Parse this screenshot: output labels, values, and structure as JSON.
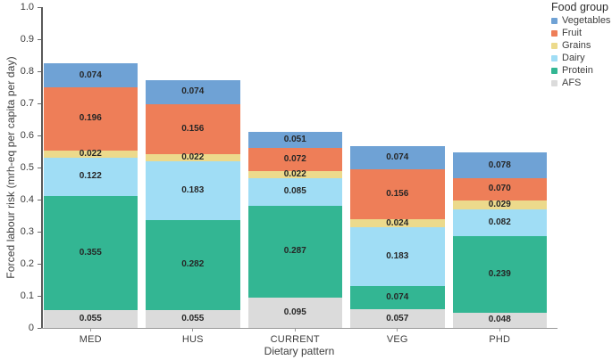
{
  "chart_data": {
    "type": "bar",
    "subtype": "stacked-vertical",
    "title": "",
    "xlabel": "Dietary pattern",
    "ylabel": "Forced labour risk (mrh-eq per capita per day)",
    "ylim": [
      0,
      1.0
    ],
    "ytick_step": 0.1,
    "ytick_labels": [
      "0",
      "0.1",
      "0.2",
      "0.3",
      "0.4",
      "0.5",
      "0.6",
      "0.7",
      "0.8",
      "0.9",
      "1.0"
    ],
    "grid": false,
    "legend_position": "top-right-outside",
    "legend_title": "Food group",
    "categories": [
      "MED",
      "HUS",
      "CURRENT",
      "VEG",
      "PHD"
    ],
    "stack_order_note": "series listed top-of-stack first; AFS is at the bottom of each bar",
    "value_label_decimals": 3,
    "series": [
      {
        "name": "Vegetables",
        "color": "#6FA2D5",
        "values": [
          0.074,
          0.074,
          0.051,
          0.074,
          0.078
        ]
      },
      {
        "name": "Fruit",
        "color": "#EE7E58",
        "values": [
          0.196,
          0.156,
          0.072,
          0.156,
          0.07
        ]
      },
      {
        "name": "Grains",
        "color": "#ECDA8C",
        "values": [
          0.022,
          0.022,
          0.022,
          0.024,
          0.029
        ]
      },
      {
        "name": "Dairy",
        "color": "#A0DDF5",
        "values": [
          0.122,
          0.183,
          0.085,
          0.183,
          0.082
        ]
      },
      {
        "name": "Protein",
        "color": "#33B693",
        "values": [
          0.355,
          0.282,
          0.287,
          0.074,
          0.239
        ]
      },
      {
        "name": "AFS",
        "color": "#DBDBDB",
        "values": [
          0.055,
          0.055,
          0.095,
          0.057,
          0.048
        ]
      }
    ],
    "bar_totals": [
      0.824,
      0.772,
      0.612,
      0.568,
      0.546
    ],
    "axis_colors": {
      "y_axis_line": "#5a5a5a",
      "x_axis_line": "#9a9a9a",
      "tick_text": "#3d3d3d",
      "value_text": "#262626"
    }
  }
}
